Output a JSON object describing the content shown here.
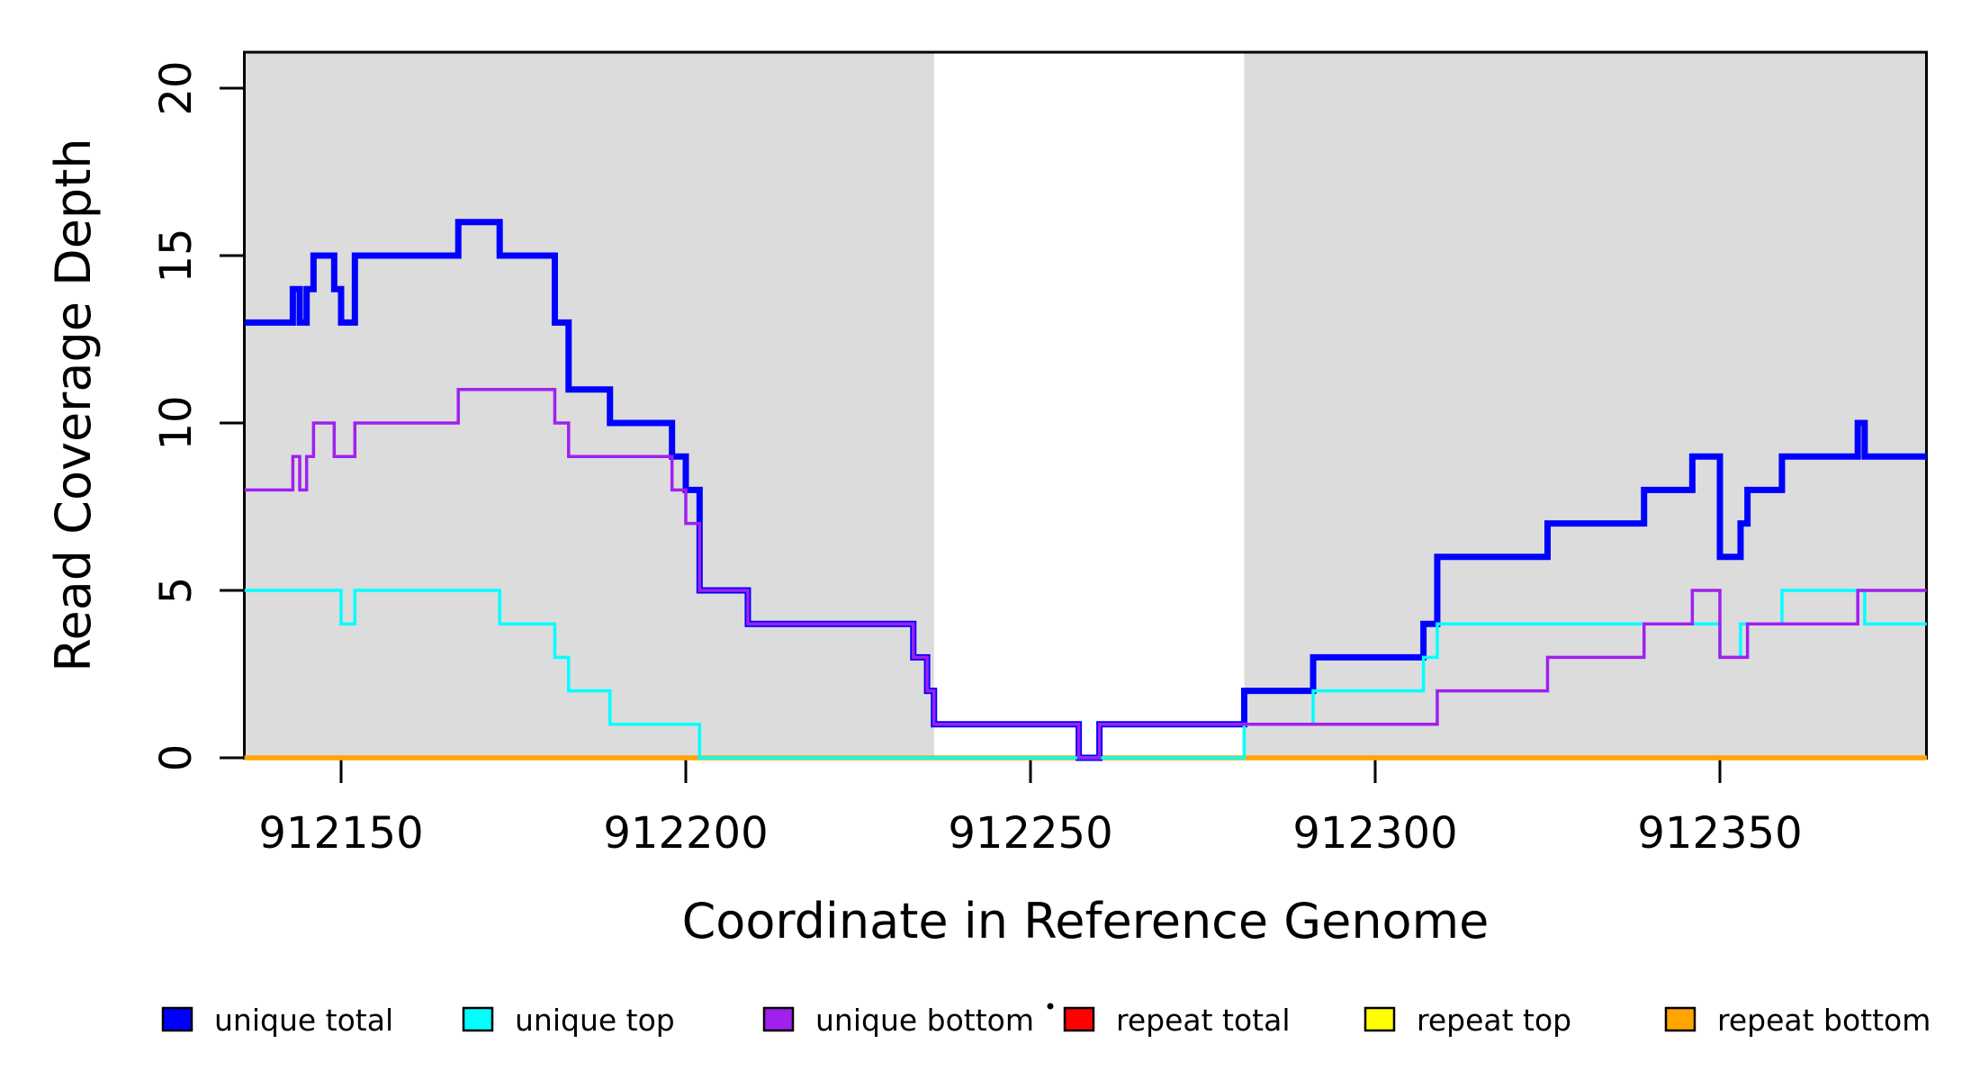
{
  "figure": {
    "background": "#FFFFFF",
    "plot_background_shaded": "#DCDCDC",
    "axis_color": "#000000"
  },
  "chart_data": {
    "type": "line",
    "step": true,
    "title": "",
    "xlabel": "Coordinate in Reference Genome",
    "ylabel": "Read Coverage Depth",
    "xlim": [
      912136,
      912380
    ],
    "ylim": [
      0,
      21.1
    ],
    "grid": false,
    "legend_position": "bottom",
    "x_ticks": [
      "912150",
      "912200",
      "912250",
      "912300",
      "912350"
    ],
    "x_tick_values": [
      912150,
      912200,
      912250,
      912300,
      912350
    ],
    "y_ticks": [
      "0",
      "5",
      "10",
      "15",
      "20"
    ],
    "y_tick_values": [
      0,
      5,
      10,
      15,
      20
    ],
    "x_end": 912380,
    "shaded_regions": [
      {
        "x0": 912136,
        "x1": 912236,
        "color": "#DCDCDC"
      },
      {
        "x0": 912281,
        "x1": 912380,
        "color": "#DCDCDC"
      }
    ],
    "series": [
      {
        "name": "unique total",
        "color": "#0000FF",
        "stroke_width": 7,
        "points": [
          [
            912136,
            13
          ],
          [
            912143,
            14
          ],
          [
            912144,
            13
          ],
          [
            912145,
            14
          ],
          [
            912146,
            15
          ],
          [
            912149,
            14
          ],
          [
            912150,
            13
          ],
          [
            912152,
            15
          ],
          [
            912167,
            16
          ],
          [
            912173,
            15
          ],
          [
            912181,
            13
          ],
          [
            912183,
            11
          ],
          [
            912189,
            10
          ],
          [
            912198,
            9
          ],
          [
            912200,
            8
          ],
          [
            912202,
            5
          ],
          [
            912209,
            4
          ],
          [
            912233,
            3
          ],
          [
            912235,
            2
          ],
          [
            912236,
            1
          ],
          [
            912257,
            0
          ],
          [
            912260,
            1
          ],
          [
            912281,
            2
          ],
          [
            912291,
            3
          ],
          [
            912307,
            4
          ],
          [
            912309,
            6
          ],
          [
            912325,
            7
          ],
          [
            912339,
            8
          ],
          [
            912346,
            9
          ],
          [
            912350,
            6
          ],
          [
            912353,
            7
          ],
          [
            912354,
            8
          ],
          [
            912359,
            9
          ],
          [
            912370,
            10
          ],
          [
            912371,
            9
          ]
        ]
      },
      {
        "name": "unique top",
        "color": "#00FFFF",
        "stroke_width": 3.5,
        "points": [
          [
            912136,
            5
          ],
          [
            912150,
            4
          ],
          [
            912152,
            5
          ],
          [
            912173,
            4
          ],
          [
            912181,
            3
          ],
          [
            912183,
            2
          ],
          [
            912189,
            1
          ],
          [
            912202,
            0
          ],
          [
            912281,
            1
          ],
          [
            912291,
            2
          ],
          [
            912307,
            3
          ],
          [
            912309,
            4
          ],
          [
            912350,
            3
          ],
          [
            912353,
            4
          ],
          [
            912359,
            5
          ],
          [
            912371,
            4
          ]
        ]
      },
      {
        "name": "unique bottom",
        "color": "#A020F0",
        "stroke_width": 3.5,
        "points": [
          [
            912136,
            8
          ],
          [
            912143,
            9
          ],
          [
            912144,
            8
          ],
          [
            912145,
            9
          ],
          [
            912146,
            10
          ],
          [
            912149,
            9
          ],
          [
            912152,
            10
          ],
          [
            912167,
            11
          ],
          [
            912181,
            10
          ],
          [
            912183,
            9
          ],
          [
            912198,
            8
          ],
          [
            912200,
            7
          ],
          [
            912202,
            5
          ],
          [
            912209,
            4
          ],
          [
            912233,
            3
          ],
          [
            912235,
            2
          ],
          [
            912236,
            1
          ],
          [
            912257,
            0
          ],
          [
            912260,
            1
          ],
          [
            912309,
            2
          ],
          [
            912325,
            3
          ],
          [
            912339,
            4
          ],
          [
            912346,
            5
          ],
          [
            912350,
            3
          ],
          [
            912354,
            4
          ],
          [
            912370,
            5
          ]
        ]
      },
      {
        "name": "repeat total",
        "color": "#FF0000",
        "stroke_width": 4,
        "points": [
          [
            912136,
            0
          ]
        ]
      },
      {
        "name": "repeat top",
        "color": "#FFFF00",
        "stroke_width": 4,
        "points": [
          [
            912136,
            0
          ]
        ]
      },
      {
        "name": "repeat bottom",
        "color": "#FFA500",
        "stroke_width": 5.5,
        "points": [
          [
            912136,
            0
          ]
        ]
      }
    ],
    "draw_order": [
      3,
      4,
      5,
      0,
      1,
      2
    ],
    "legend": [
      {
        "label": "unique total",
        "color": "#0000FF"
      },
      {
        "label": "unique top",
        "color": "#00FFFF"
      },
      {
        "label": "unique bottom",
        "color": "#A020F0"
      },
      {
        "label": "repeat total",
        "color": "#FF0000"
      },
      {
        "label": "repeat top",
        "color": "#FFFF00"
      },
      {
        "label": "repeat bottom",
        "color": "#FFA500"
      }
    ]
  }
}
